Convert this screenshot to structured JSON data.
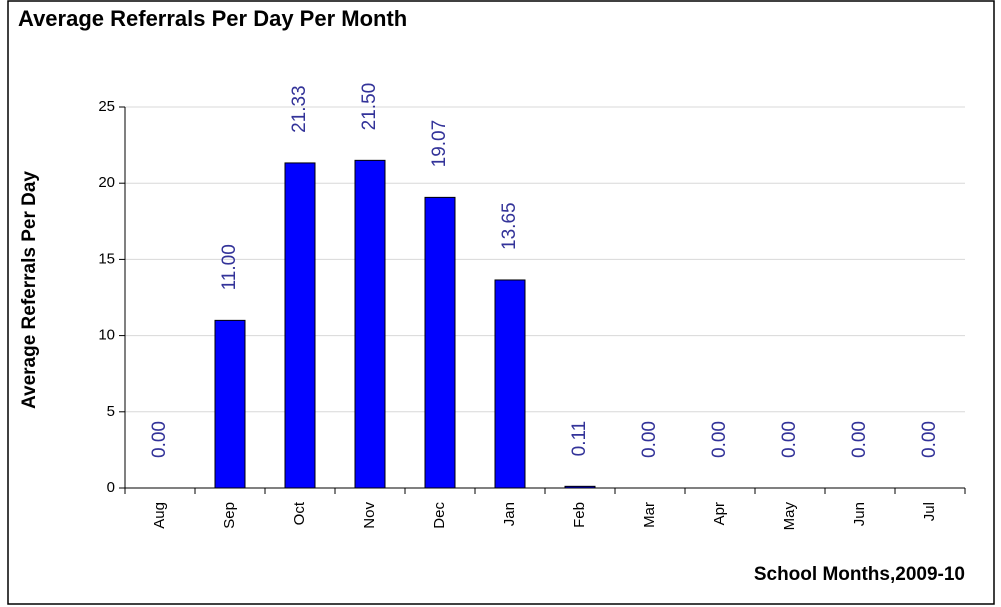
{
  "chart_data": {
    "type": "bar",
    "title": "Average Referrals Per Day Per Month",
    "x_label": "School Months,2009-10",
    "y_label": "Average Referrals Per Day",
    "categories": [
      "Aug",
      "Sep",
      "Oct",
      "Nov",
      "Dec",
      "Jan",
      "Feb",
      "Mar",
      "Apr",
      "May",
      "Jun",
      "Jul"
    ],
    "values": [
      0,
      11,
      21.33,
      21.5,
      19.07,
      13.65,
      0.11,
      0,
      0,
      0,
      0,
      0
    ],
    "value_labels": [
      "0.00",
      "11.00",
      "21.33",
      "21.50",
      "19.07",
      "13.65",
      "0.11",
      "0.00",
      "0.00",
      "0.00",
      "0.00",
      "0.00"
    ],
    "color": "#0000ff",
    "label_color": "#333399",
    "ylim": [
      0,
      25
    ],
    "yticks": [
      0,
      5,
      10,
      15,
      20,
      25
    ],
    "grid": true
  }
}
